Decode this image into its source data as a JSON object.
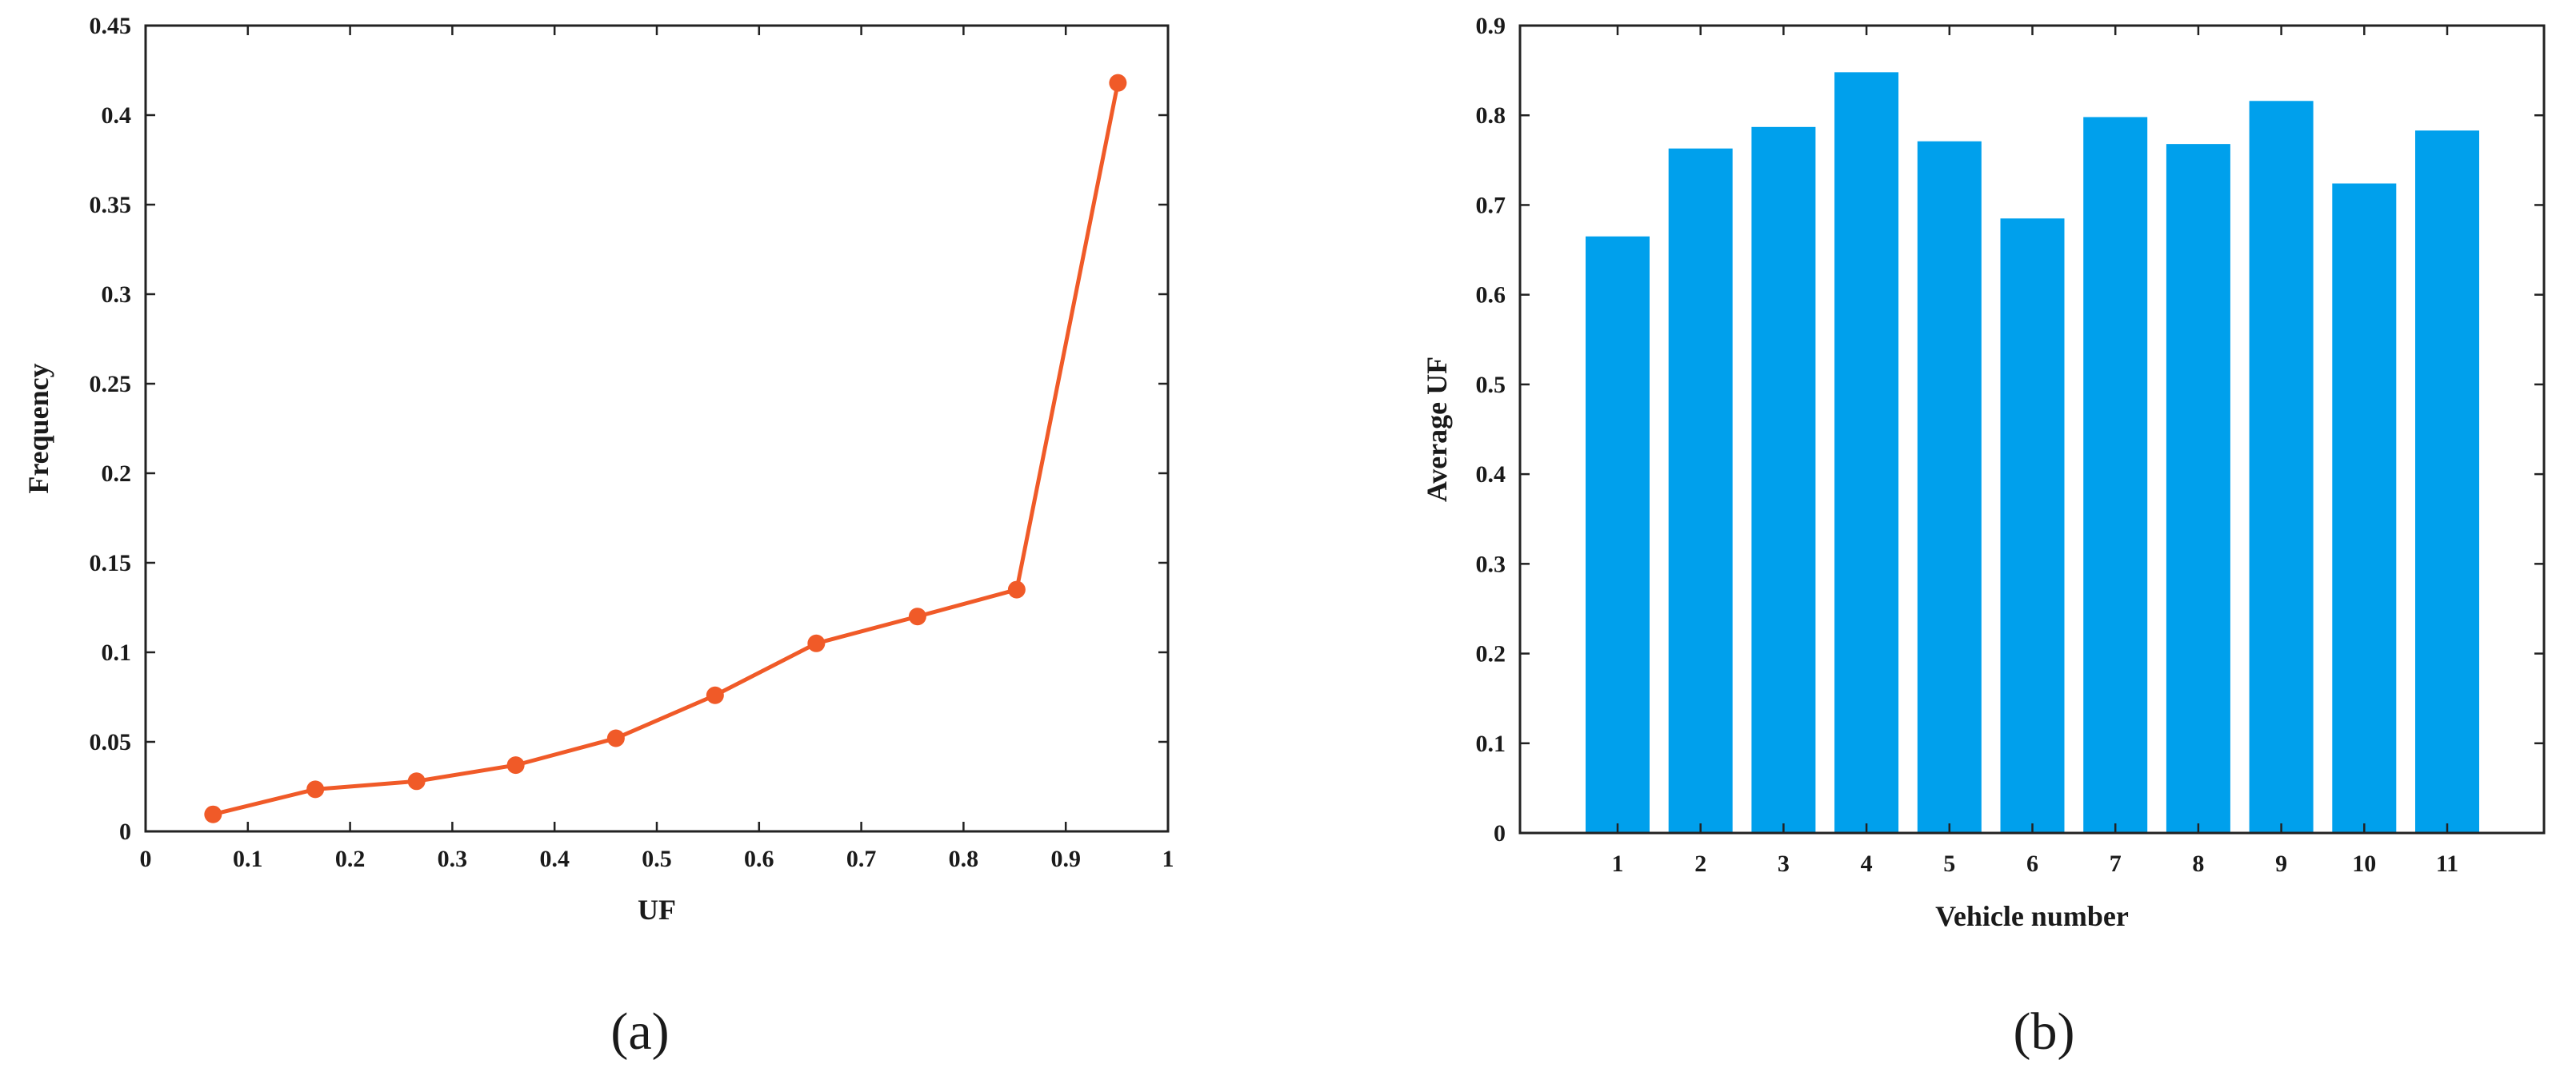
{
  "chart_data": [
    {
      "type": "line",
      "panel": "(a)",
      "xlabel": "UF",
      "ylabel": "Frequency",
      "xlim": [
        0,
        1
      ],
      "ylim": [
        0,
        0.45
      ],
      "xticks": [
        "0",
        "0.1",
        "0.2",
        "0.3",
        "0.4",
        "0.5",
        "0.6",
        "0.7",
        "0.8",
        "0.9",
        "1"
      ],
      "yticks": [
        "0",
        "0.05",
        "0.1",
        "0.15",
        "0.2",
        "0.25",
        "0.3",
        "0.35",
        "0.4",
        "0.45"
      ],
      "grid": false,
      "series": [
        {
          "color": "#f05a28",
          "marker": "circle",
          "x": [
            0.066,
            0.166,
            0.265,
            0.362,
            0.46,
            0.557,
            0.656,
            0.755,
            0.852,
            0.951
          ],
          "y": [
            0.0095,
            0.0235,
            0.028,
            0.037,
            0.052,
            0.076,
            0.105,
            0.12,
            0.135,
            0.418
          ]
        }
      ]
    },
    {
      "type": "bar",
      "panel": "(b)",
      "xlabel": "Vehicle number",
      "ylabel": "Average UF",
      "categories": [
        "1",
        "2",
        "3",
        "4",
        "5",
        "6",
        "7",
        "8",
        "9",
        "10",
        "11"
      ],
      "values": [
        0.665,
        0.763,
        0.787,
        0.848,
        0.771,
        0.685,
        0.798,
        0.768,
        0.816,
        0.724,
        0.783
      ],
      "ylim": [
        0,
        0.9
      ],
      "yticks": [
        "0",
        "0.1",
        "0.2",
        "0.3",
        "0.4",
        "0.5",
        "0.6",
        "0.7",
        "0.8",
        "0.9"
      ],
      "grid": false,
      "color": "#00a0ec"
    }
  ]
}
